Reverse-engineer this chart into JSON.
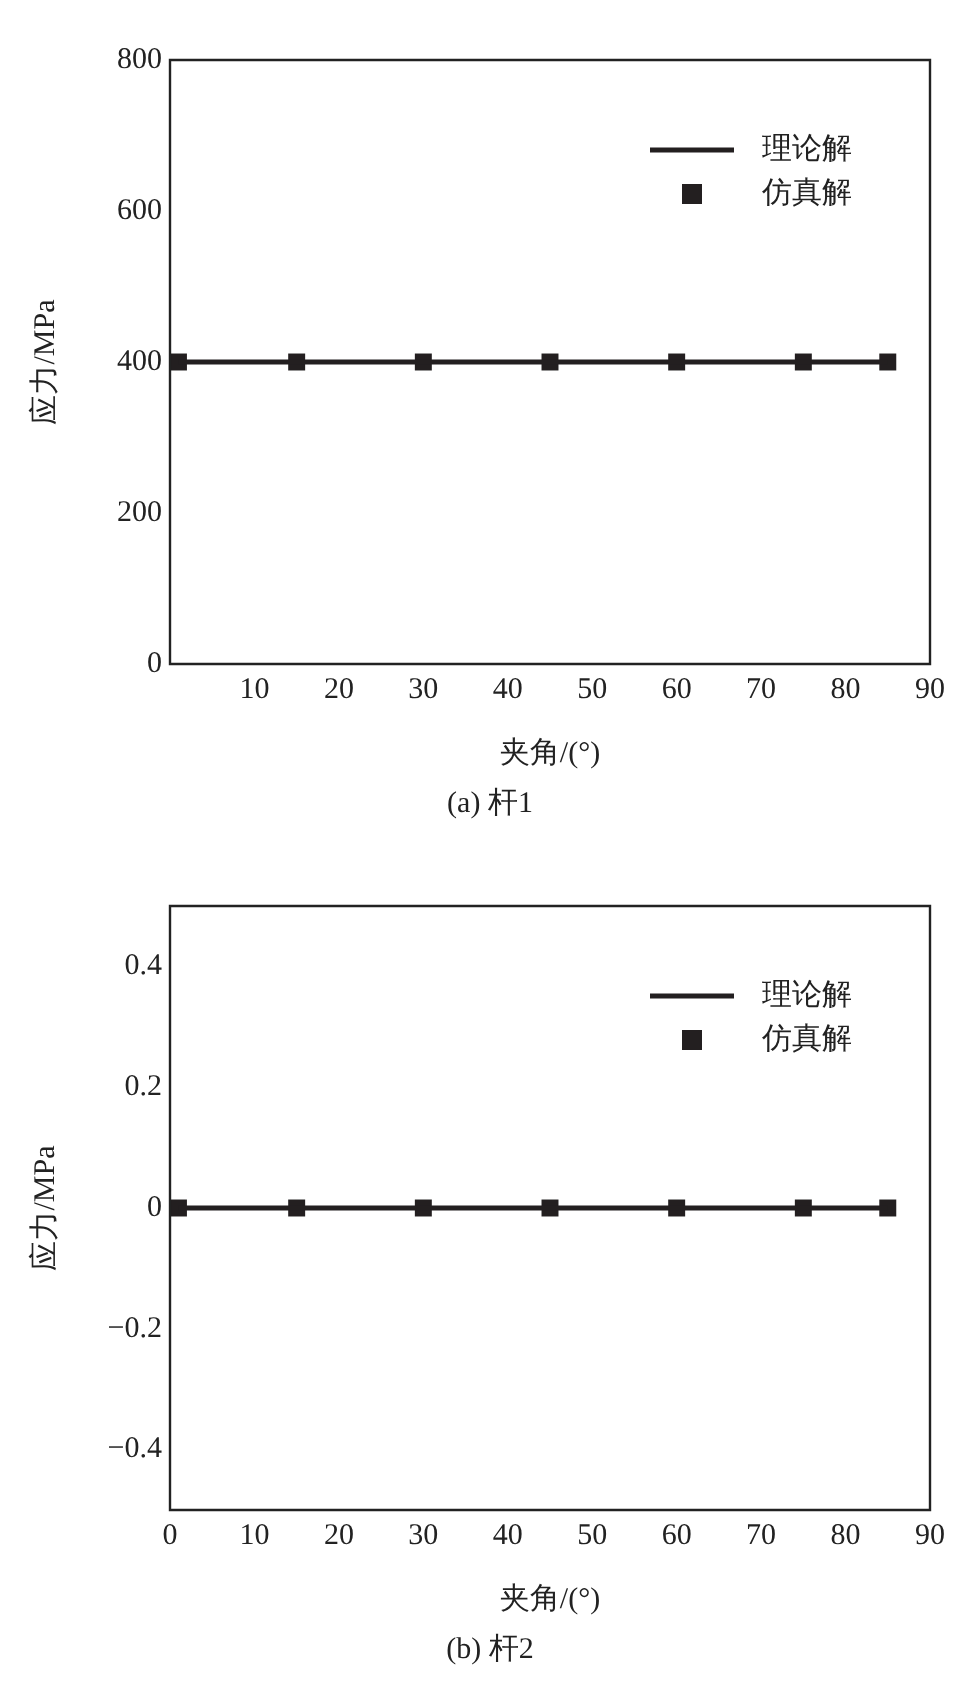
{
  "chart_data": [
    {
      "type": "line",
      "xlabel": "夹角/(°)",
      "ylabel": "应力/MPa",
      "xlim": [
        0,
        90
      ],
      "xticks": [
        10,
        20,
        30,
        40,
        50,
        60,
        70,
        80,
        90
      ],
      "ylim": [
        0,
        800
      ],
      "yticks": [
        0,
        200,
        400,
        600,
        800
      ],
      "legend": "top right",
      "grid": false,
      "annotations": [
        "(a) 杆1"
      ],
      "series": [
        {
          "name": "理论解",
          "color": "#231f20",
          "marker": "none",
          "line_style": "solid",
          "x": [
            1,
            85
          ],
          "values": [
            400,
            400
          ]
        },
        {
          "name": "仿真解",
          "type": "scatter",
          "color": "#231f20",
          "marker": "square",
          "x": [
            1,
            15,
            30,
            45,
            60,
            75,
            85
          ],
          "values": [
            400,
            400,
            400,
            400,
            400,
            400,
            400
          ]
        }
      ]
    },
    {
      "type": "line",
      "xlabel": "夹角/(°)",
      "ylabel": "应力/MPa",
      "xlim": [
        0,
        90
      ],
      "xticks": [
        0,
        10,
        20,
        30,
        40,
        50,
        60,
        70,
        80,
        90
      ],
      "ylim": [
        -0.5,
        0.5
      ],
      "yticks": [
        {
          "value": -0.4,
          "label": "−0.4"
        },
        {
          "value": -0.2,
          "label": "−0.2"
        },
        0,
        0.2,
        0.4
      ],
      "legend": "top right",
      "grid": false,
      "annotations": [
        "(b) 杆2"
      ],
      "series": [
        {
          "name": "理论解",
          "color": "#231f20",
          "marker": "none",
          "line_style": "solid",
          "x": [
            1,
            85
          ],
          "values": [
            0,
            0
          ]
        },
        {
          "name": "仿真解",
          "type": "scatter",
          "color": "#231f20",
          "marker": "square",
          "x": [
            1,
            15,
            30,
            45,
            60,
            75,
            85
          ],
          "values": [
            0,
            0,
            0,
            0,
            0,
            0,
            0
          ]
        }
      ]
    }
  ]
}
